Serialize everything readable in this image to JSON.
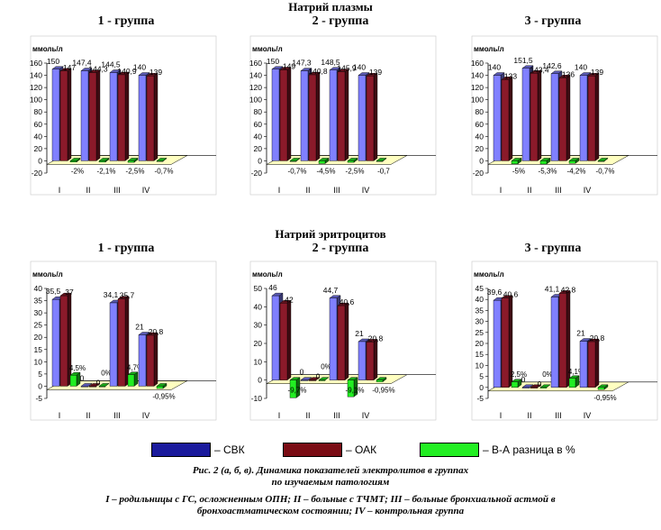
{
  "colors": {
    "svk": "#1a1a9c",
    "oak": "#7a0c14",
    "diff": "#22ee22",
    "svk_face": "#8080ff",
    "oak_face": "#8b1a2a",
    "floor": "#ffffc0"
  },
  "sections": [
    {
      "title": "Натрий плазмы",
      "groups": [
        "1 - группа",
        "2 - группа",
        "3 - группа"
      ]
    },
    {
      "title": "Натрий эритроцитов",
      "groups": [
        "1 - группа",
        "2 - группа",
        "3 - группа"
      ]
    }
  ],
  "legend": [
    {
      "label": "– СВК",
      "color": "#1a1a9c"
    },
    {
      "label": "– ОАК",
      "color": "#7a0c14"
    },
    {
      "label": "– В-А разница  в %",
      "color": "#22ee22"
    }
  ],
  "caption": {
    "line1": "Рис. 2 (а, б, в). Динамика  показателей электролитов в группах",
    "line2": "по изучаемым патологиям",
    "line3": "I – родильницы с ГС, осложненным ОПН; II – больные  с ТЧМТ; III – больные бронхиальной астмой в",
    "line4": "бронхоастматическом состоянии; IV – контрольная группа"
  },
  "chart_data": [
    {
      "type": "bar",
      "section": "Натрий плазмы",
      "group": "1 - группа",
      "ylabel": "ммоль/л",
      "ylim": [
        -20,
        160
      ],
      "yticks": [
        "160",
        "140",
        "120",
        "100",
        "80",
        "60",
        "40",
        "20",
        "0",
        "-20"
      ],
      "categories": [
        "I",
        "II",
        "III",
        "IV"
      ],
      "svk": [
        150,
        147.4,
        144.5,
        140
      ],
      "oak": [
        147,
        144.3,
        140.9,
        139
      ],
      "diff": [
        -2,
        -2.1,
        -2.5,
        -0.7
      ],
      "labels_svk": [
        "150",
        "147,4",
        "144,5",
        "140"
      ],
      "labels_oak": [
        "147",
        "144,3",
        "140,9",
        "139"
      ],
      "labels_diff": [
        "-2%",
        "-2,1%",
        "-2,5%",
        "-0,7%"
      ]
    },
    {
      "type": "bar",
      "section": "Натрий плазмы",
      "group": "2 - группа",
      "ylabel": "ммоль/л",
      "ylim": [
        -20,
        160
      ],
      "yticks": [
        "160",
        "140",
        "120",
        "100",
        "80",
        "60",
        "40",
        "20",
        "0",
        "-20"
      ],
      "categories": [
        "I",
        "II",
        "III",
        "IV"
      ],
      "svk": [
        150,
        147.3,
        148.5,
        140
      ],
      "oak": [
        149,
        140.8,
        145.9,
        139
      ],
      "diff": [
        -0.7,
        -4.5,
        -2.5,
        -0.7
      ],
      "labels_svk": [
        "150",
        "147,3",
        "148,5",
        "140"
      ],
      "labels_oak": [
        "149",
        "140,8",
        "145,9",
        "139"
      ],
      "labels_diff": [
        "-0,7%",
        "-4,5%",
        "-2,5%",
        "-0,7"
      ]
    },
    {
      "type": "bar",
      "section": "Натрий плазмы",
      "group": "3 - группа",
      "ylabel": "ммоль/л",
      "ylim": [
        -20,
        160
      ],
      "yticks": [
        "160",
        "140",
        "120",
        "100",
        "80",
        "60",
        "40",
        "20",
        "0",
        "-20"
      ],
      "categories": [
        "I",
        "II",
        "III",
        "IV"
      ],
      "svk": [
        140,
        151.5,
        142.6,
        140
      ],
      "oak": [
        133,
        143.4,
        136,
        139
      ],
      "diff": [
        -5,
        -5.3,
        -4.2,
        -0.7
      ],
      "labels_svk": [
        "140",
        "151,5",
        "142,6",
        "140"
      ],
      "labels_oak": [
        "133",
        "143,4",
        "136",
        "139"
      ],
      "labels_diff": [
        "-5%",
        "-5,3%",
        "-4,2%",
        "-0,7%"
      ]
    },
    {
      "type": "bar",
      "section": "Натрий эритроцитов",
      "group": "1 - группа",
      "ylabel": "ммоль/л",
      "ylim": [
        -5,
        40
      ],
      "yticks": [
        "40",
        "35",
        "30",
        "25",
        "20",
        "15",
        "10",
        "5",
        "0",
        "-5"
      ],
      "categories": [
        "I",
        "II",
        "III",
        "IV"
      ],
      "svk": [
        35.5,
        0,
        34.1,
        21
      ],
      "oak": [
        37,
        0,
        35.7,
        20.8
      ],
      "diff": [
        4.5,
        0,
        4.7,
        -0.95
      ],
      "labels_svk": [
        "35,5",
        "0",
        "34,1",
        "21"
      ],
      "labels_oak": [
        "37",
        "0",
        "35,7",
        "20,8"
      ],
      "labels_diff": [
        "4,5%",
        "0%",
        "4,7%",
        "-0,95%"
      ]
    },
    {
      "type": "bar",
      "section": "Натрий эритроцитов",
      "group": "2 - группа",
      "ylabel": "ммоль/л",
      "ylim": [
        -10,
        50
      ],
      "yticks": [
        "50",
        "40",
        "30",
        "20",
        "10",
        "0",
        "-10"
      ],
      "categories": [
        "I",
        "II",
        "III",
        "IV"
      ],
      "svk": [
        46,
        0,
        44.7,
        21
      ],
      "oak": [
        42,
        0,
        40.6,
        20.8
      ],
      "diff": [
        -9.7,
        0,
        -9.1,
        -0.95
      ],
      "labels_svk": [
        "46",
        "0",
        "44,7",
        "21"
      ],
      "labels_oak": [
        "42",
        "0",
        "40,6",
        "20,8"
      ],
      "labels_diff": [
        "-9,7%",
        "0%",
        "-9,1%",
        "-0,95%"
      ]
    },
    {
      "type": "bar",
      "section": "Натрий эритроцитов",
      "group": "3 - группа",
      "ylabel": "ммоль/л",
      "ylim": [
        -5,
        45
      ],
      "yticks": [
        "45",
        "40",
        "35",
        "30",
        "25",
        "20",
        "15",
        "10",
        "5",
        "0",
        "-5"
      ],
      "categories": [
        "I",
        "II",
        "III",
        "IV"
      ],
      "svk": [
        39.6,
        0,
        41.1,
        21
      ],
      "oak": [
        40.6,
        0,
        42.8,
        20.8
      ],
      "diff": [
        2.5,
        0,
        4.1,
        -0.95
      ],
      "labels_svk": [
        "39,6",
        "0",
        "41,1",
        "21"
      ],
      "labels_oak": [
        "40,6",
        "0",
        "42,8",
        "20,8"
      ],
      "labels_diff": [
        "2,5%",
        "0%",
        "4,1%",
        "-0,95%"
      ]
    }
  ]
}
